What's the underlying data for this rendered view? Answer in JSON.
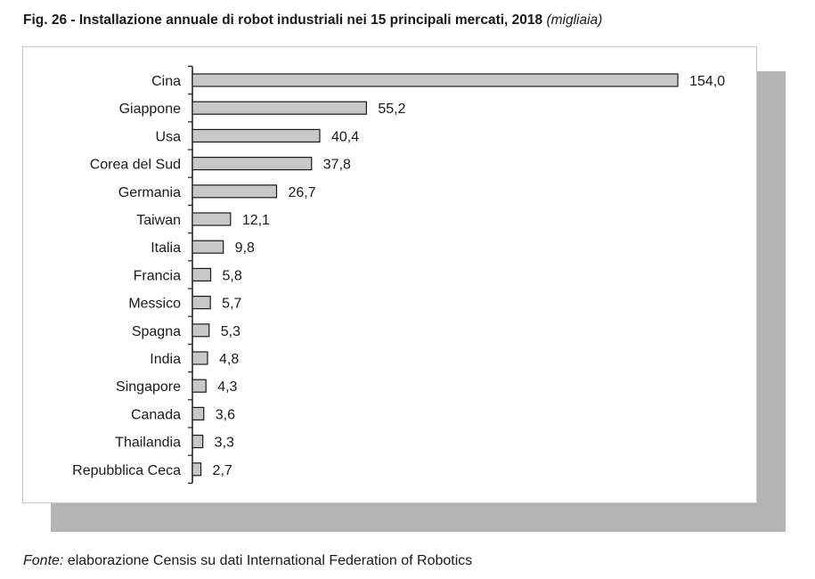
{
  "title": {
    "main": "Fig. 26 - Installazione annuale di robot industriali nei 15 principali mercati, 2018",
    "unit": "(migliaia)"
  },
  "source": {
    "lead": "Fonte:",
    "text": "elaborazione Censis su dati International Federation of Robotics"
  },
  "chart_data": {
    "type": "bar",
    "orientation": "horizontal",
    "title": "Installazione annuale di robot industriali nei 15 principali mercati, 2018",
    "unit": "migliaia",
    "categories": [
      "Cina",
      "Giappone",
      "Usa",
      "Corea del Sud",
      "Germania",
      "Taiwan",
      "Italia",
      "Francia",
      "Messico",
      "Spagna",
      "India",
      "Singapore",
      "Canada",
      "Thailandia",
      "Repubblica Ceca"
    ],
    "values": [
      154.0,
      55.2,
      40.4,
      37.8,
      26.7,
      12.1,
      9.8,
      5.8,
      5.7,
      5.3,
      4.8,
      4.3,
      3.6,
      3.3,
      2.7
    ],
    "value_labels": [
      "154,0",
      "55,2",
      "40,4",
      "37,8",
      "26,7",
      "12,1",
      "9,8",
      "5,8",
      "5,7",
      "5,3",
      "4,8",
      "4,3",
      "3,6",
      "3,3",
      "2,7"
    ],
    "xlim": [
      0,
      154
    ],
    "grid": false,
    "legend": "none",
    "bar_color": "#c8c8c8",
    "bar_edge_color": "#1a1a1a"
  }
}
